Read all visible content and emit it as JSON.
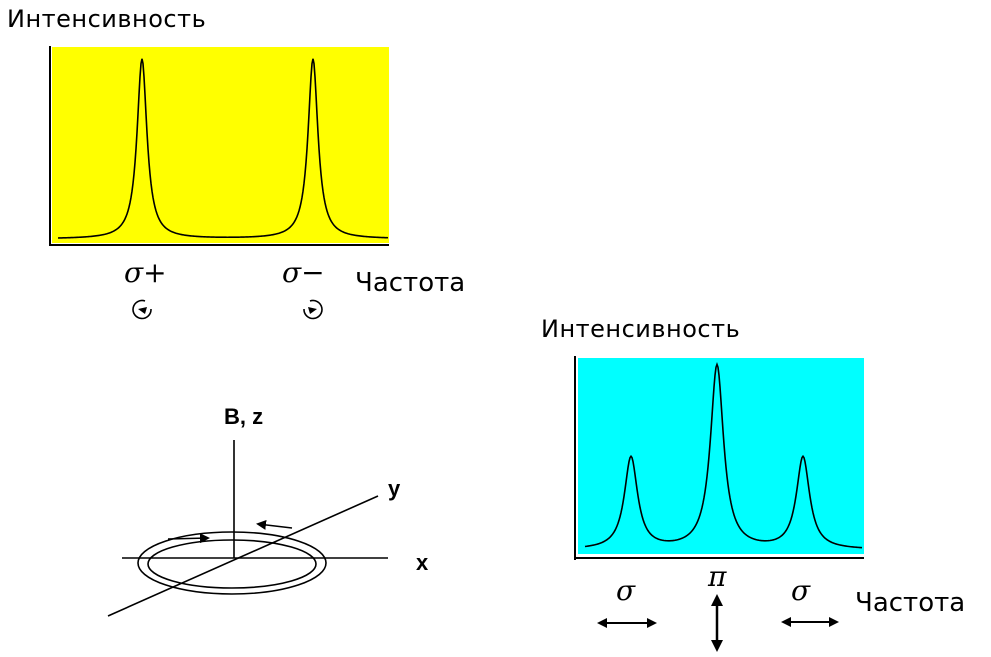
{
  "chart_data": [
    {
      "type": "line",
      "title": "",
      "ylabel": "Интенсивность",
      "xlabel": "Частота",
      "background": "#ffff00",
      "tick_labels": [
        "σ+",
        "σ−"
      ],
      "peaks": [
        {
          "label": "σ+",
          "position": 1,
          "relative_height": 1.0
        },
        {
          "label": "σ−",
          "position": 2,
          "relative_height": 1.0
        }
      ],
      "polarization_icons": [
        "counterclockwise-circular-arrow",
        "clockwise-circular-arrow"
      ]
    },
    {
      "type": "line",
      "title": "",
      "ylabel": "Интенсивность",
      "xlabel": "Частота",
      "background": "#00ffff",
      "tick_labels": [
        "σ",
        "π",
        "σ"
      ],
      "peaks": [
        {
          "label": "σ",
          "position": 1,
          "relative_height": 0.5
        },
        {
          "label": "π",
          "position": 2,
          "relative_height": 1.0
        },
        {
          "label": "σ",
          "position": 3,
          "relative_height": 0.5
        }
      ],
      "polarization_icons": [
        "horizontal-double-arrow",
        "vertical-double-arrow",
        "horizontal-double-arrow"
      ]
    }
  ],
  "top_plot": {
    "ylabel": "Интенсивность",
    "xlabel": "Частота",
    "label_sigma_plus": "σ+",
    "label_sigma_minus": "σ−"
  },
  "bottom_plot": {
    "ylabel": "Интенсивность",
    "xlabel": "Частота",
    "label_sigma_left": "σ",
    "label_pi": "π",
    "label_sigma_right": "σ"
  },
  "axes_diagram": {
    "z_label": "B, z",
    "y_label": "y",
    "x_label": "x"
  },
  "colors": {
    "yellow_panel": "#ffff00",
    "cyan_panel": "#00ffff",
    "line": "#000000"
  }
}
